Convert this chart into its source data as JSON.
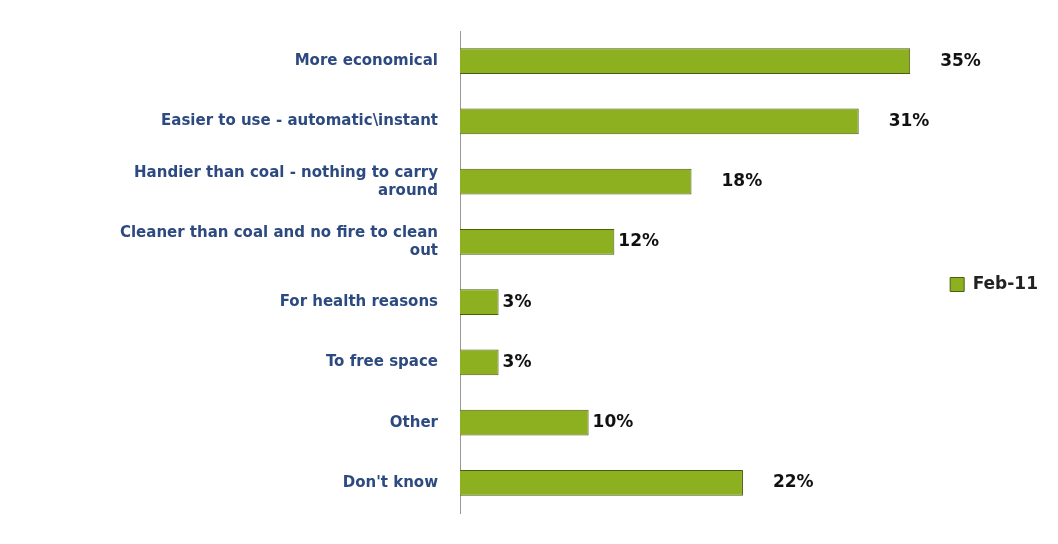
{
  "chart_data": {
    "type": "bar",
    "orientation": "horizontal",
    "categories": [
      "More economical",
      "Easier to use - automatic\\instant",
      "Handier than coal - nothing to carry around",
      "Cleaner than coal and no fire to clean out",
      "For health reasons",
      "To free space",
      "Other",
      "Don't know"
    ],
    "series": [
      {
        "name": "Feb-11",
        "color": "#8db020",
        "values": [
          35,
          31,
          18,
          12,
          3,
          3,
          10,
          22
        ],
        "value_labels": [
          "35%",
          "31%",
          "18%",
          "12%",
          "3%",
          "3%",
          "10%",
          "22%"
        ]
      }
    ],
    "xlim": [
      0,
      35
    ],
    "tick_labels": "y",
    "grid": false,
    "legend": "right"
  }
}
